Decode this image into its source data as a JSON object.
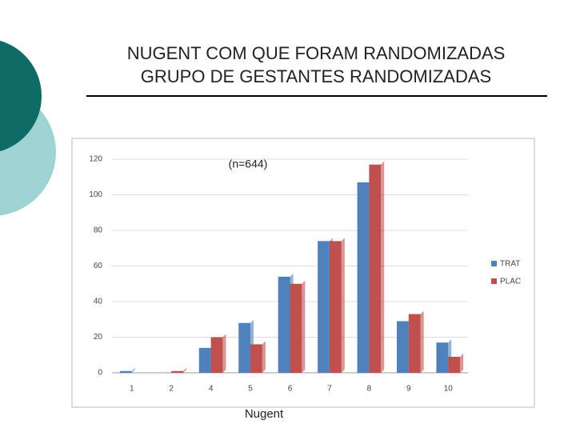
{
  "chart_data": {
    "type": "bar",
    "title": [
      "NUGENT COM QUE FORAM RANDOMIZADAS",
      "GRUPO DE GESTANTES RANDOMIZADAS"
    ],
    "annotation": "(n=644)",
    "x_label": "Nugent",
    "categories": [
      "1",
      "2",
      "4",
      "5",
      "6",
      "7",
      "8",
      "9",
      "10"
    ],
    "series": [
      {
        "name": "TRAT",
        "color": "#4f81bd",
        "values": [
          1,
          0,
          14,
          28,
          54,
          74,
          107,
          29,
          17
        ]
      },
      {
        "name": "PLAC",
        "color": "#c0504d",
        "values": [
          0,
          1,
          20,
          16,
          50,
          74,
          117,
          33,
          9
        ]
      }
    ],
    "ylim": [
      0,
      120
    ],
    "yticks": [
      0,
      20,
      40,
      60,
      80,
      100,
      120
    ],
    "grid": true,
    "legend": "right"
  }
}
